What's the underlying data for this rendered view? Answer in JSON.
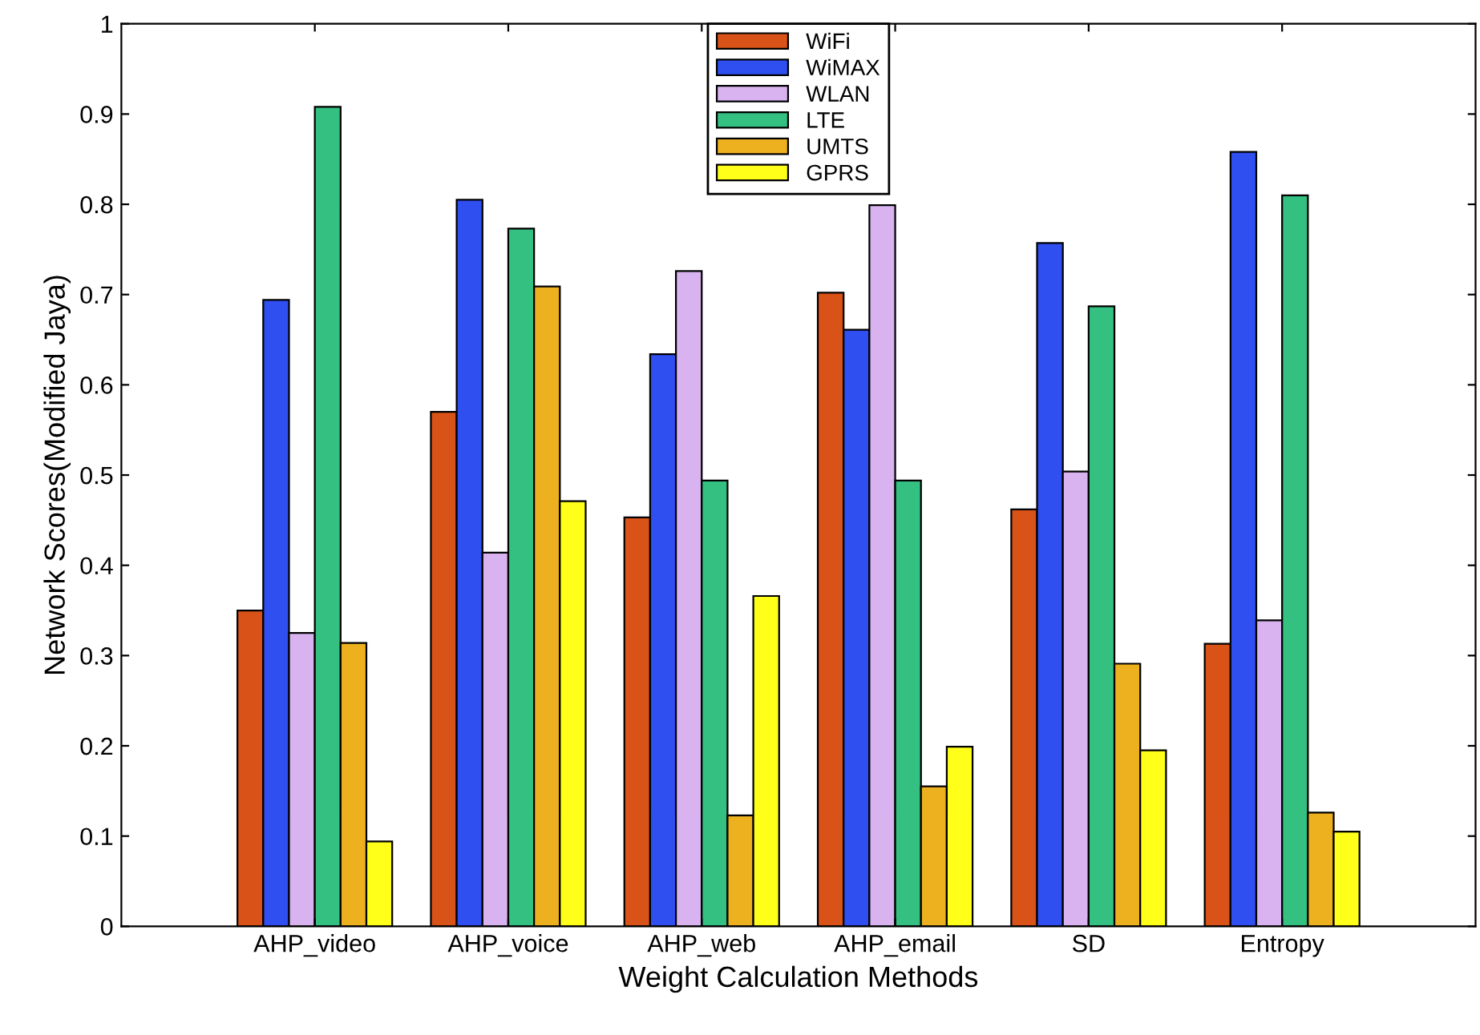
{
  "chart_data": {
    "type": "bar",
    "xlabel": "Weight Calculation Methods",
    "ylabel": "Network Scores(Modified Jaya)",
    "categories": [
      "AHP_video",
      "AHP_voice",
      "AHP_web",
      "AHP_email",
      "SD",
      "Entropy"
    ],
    "series": [
      {
        "name": "WiFi",
        "color": "#d95319",
        "values": [
          0.35,
          0.57,
          0.453,
          0.702,
          0.462,
          0.313
        ]
      },
      {
        "name": "WiMAX",
        "color": "#2f4ff0",
        "values": [
          0.694,
          0.805,
          0.634,
          0.661,
          0.757,
          0.858
        ]
      },
      {
        "name": "WLAN",
        "color": "#d9b3f0",
        "values": [
          0.325,
          0.414,
          0.726,
          0.799,
          0.504,
          0.339
        ]
      },
      {
        "name": "LTE",
        "color": "#33c080",
        "values": [
          0.908,
          0.773,
          0.494,
          0.494,
          0.687,
          0.81
        ]
      },
      {
        "name": "UMTS",
        "color": "#edb120",
        "values": [
          0.314,
          0.709,
          0.123,
          0.155,
          0.291,
          0.126
        ]
      },
      {
        "name": "GPRS",
        "color": "#ffff1a",
        "values": [
          0.094,
          0.471,
          0.366,
          0.199,
          0.195,
          0.105
        ]
      }
    ],
    "ylim": [
      0,
      1
    ],
    "yticks": [
      0,
      {
        "value": 0.1,
        "label": "0.1"
      },
      {
        "value": 0.2,
        "label": "0.2"
      },
      {
        "value": 0.3,
        "label": "0.3"
      },
      {
        "value": 0.4,
        "label": "0.4"
      },
      {
        "value": 0.5,
        "label": "0.5"
      },
      {
        "value": 0.6,
        "label": "0.6"
      },
      {
        "value": 0.7,
        "label": "0.7"
      },
      {
        "value": 0.8,
        "label": "0.8"
      },
      {
        "value": 0.9,
        "label": "0.9"
      },
      1
    ],
    "grid": false,
    "legend": "top"
  }
}
